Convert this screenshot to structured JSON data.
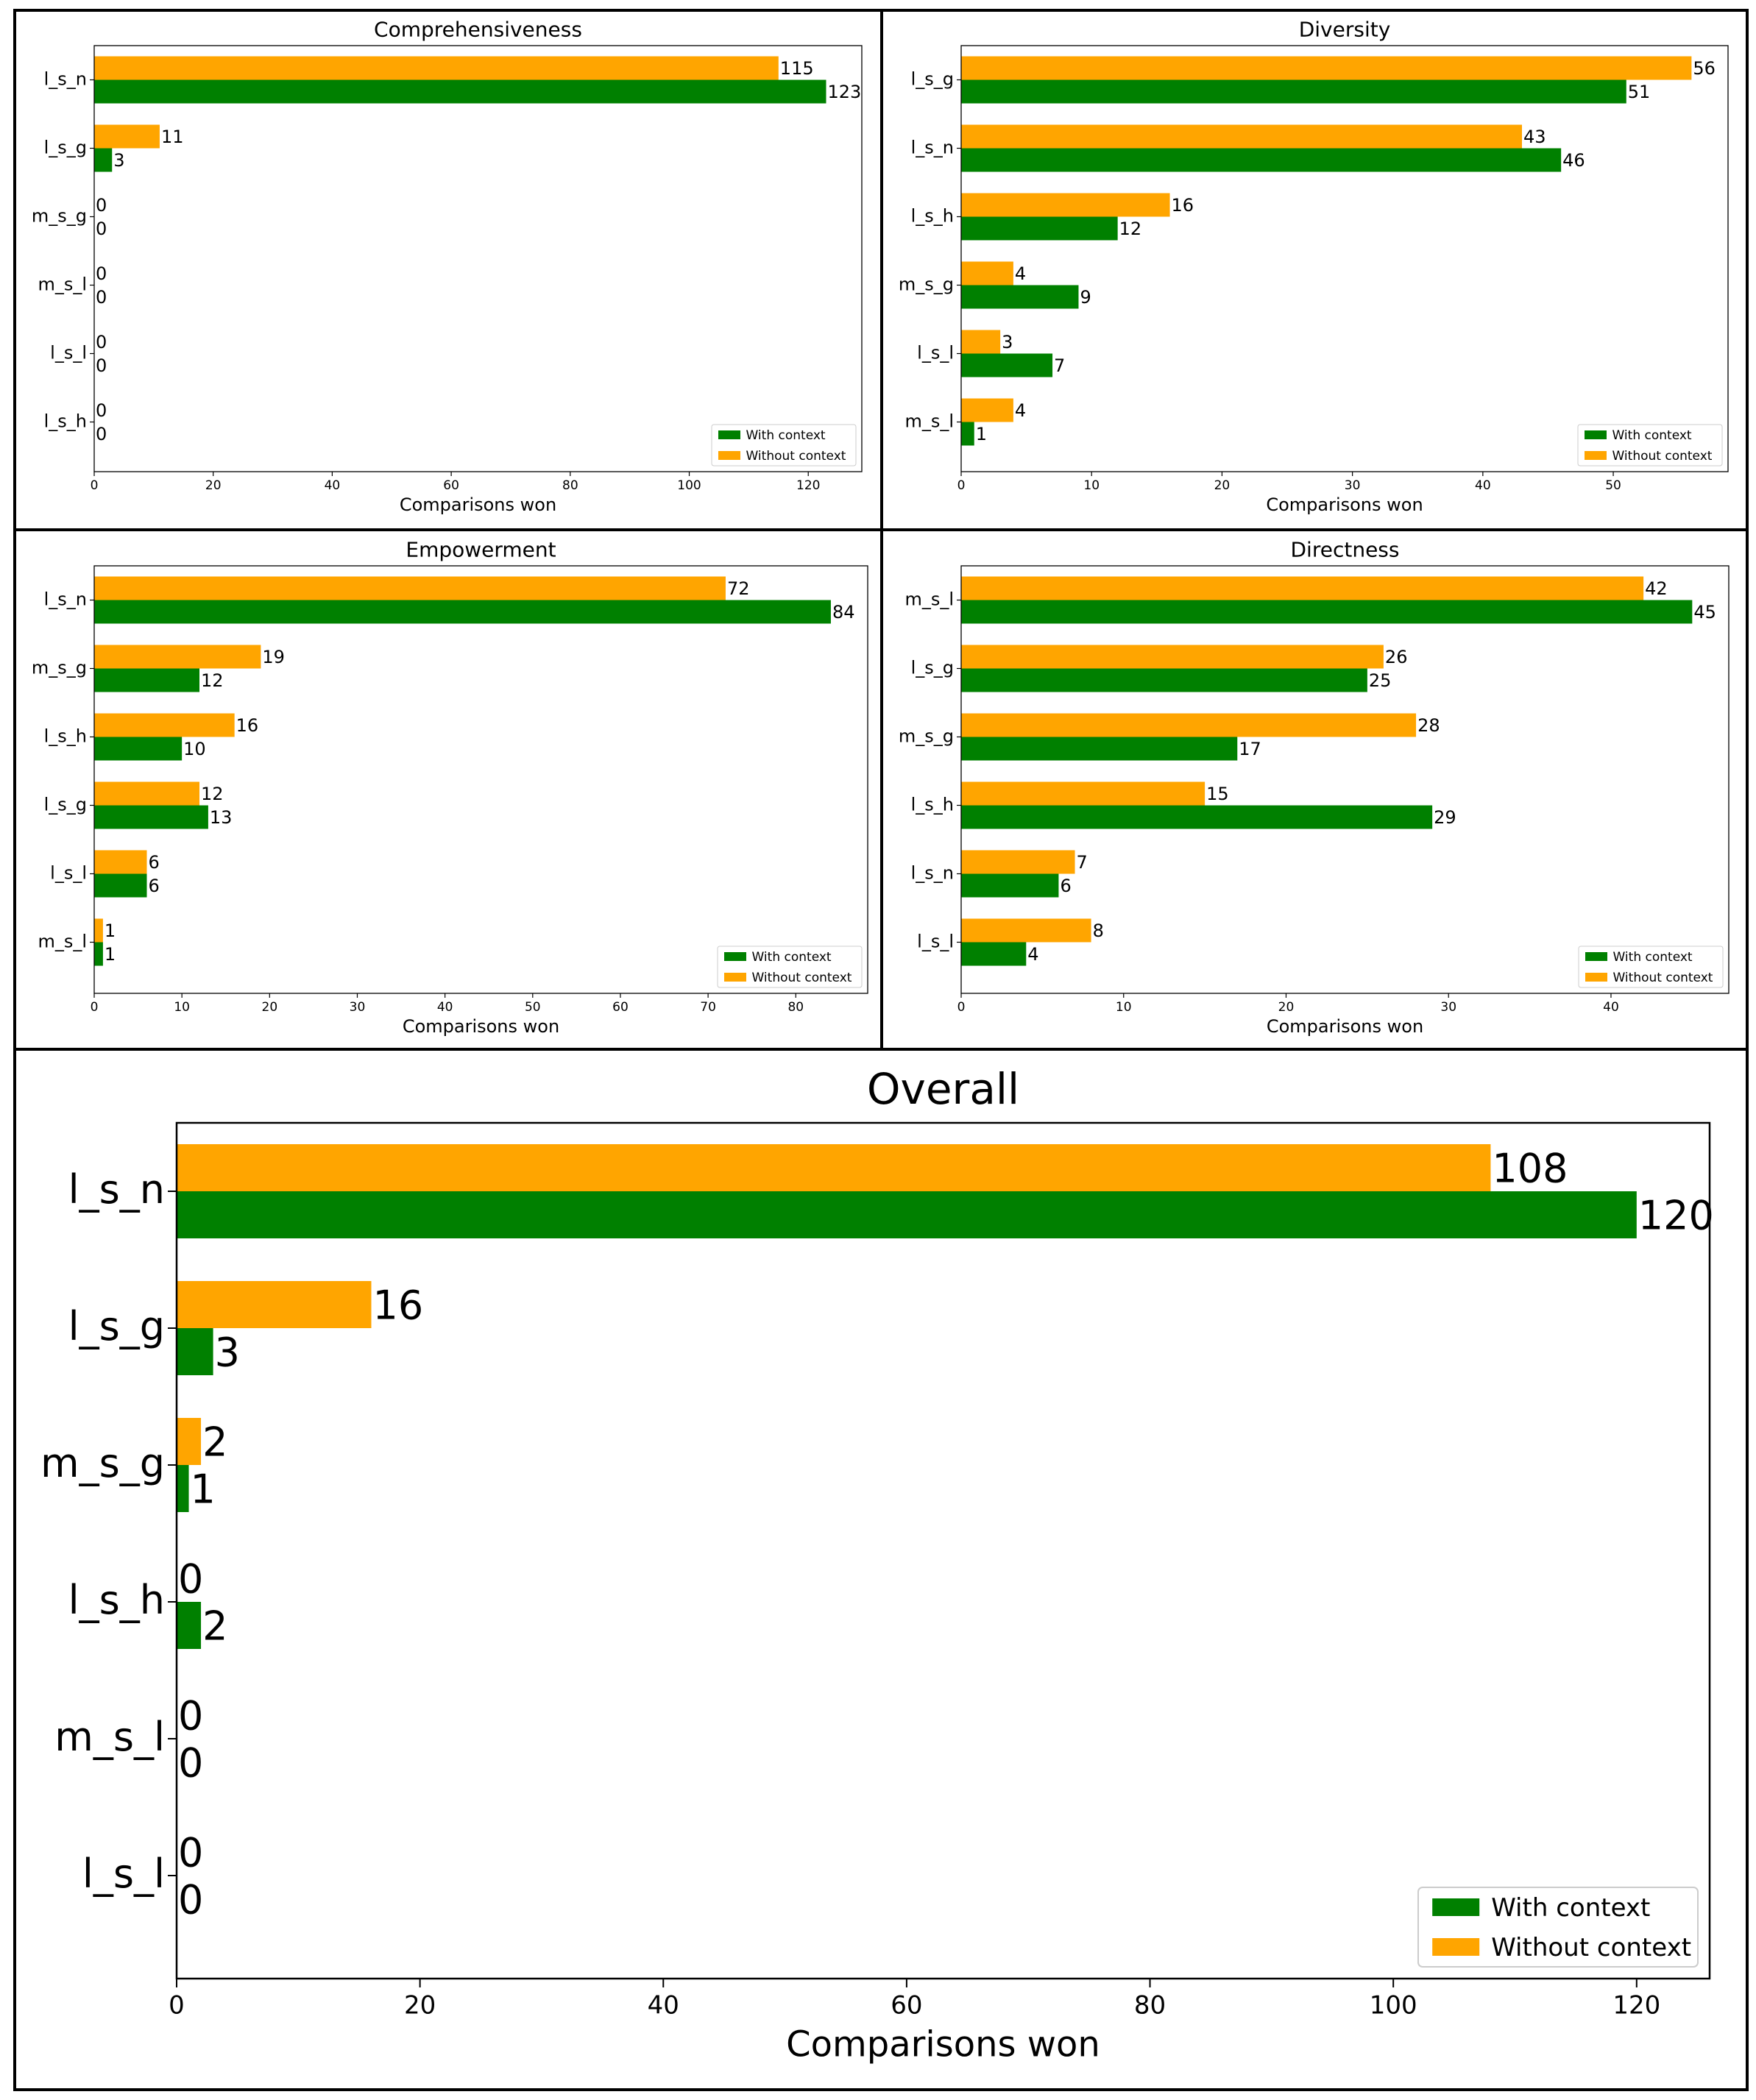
{
  "colors": {
    "with_context": "#008000",
    "without_context": "#FFA500",
    "axis": "#000000",
    "background": "#FFFFFF"
  },
  "chart_data": [
    {
      "type": "bar",
      "orientation": "horizontal",
      "title": "Comprehensiveness",
      "xlabel": "Comparisons won",
      "ylabel": "",
      "categories": [
        "l_s_n",
        "l_s_g",
        "m_s_g",
        "m_s_l",
        "l_s_l",
        "l_s_h"
      ],
      "series": [
        {
          "name": "Without context",
          "values": [
            115,
            11,
            0,
            0,
            0,
            0
          ]
        },
        {
          "name": "With context",
          "values": [
            123,
            3,
            0,
            0,
            0,
            0
          ]
        }
      ],
      "xlim": [
        0,
        129
      ],
      "xticks": [
        0,
        20,
        40,
        60,
        80,
        100,
        120
      ],
      "legend": {
        "position": "lower-right",
        "entries": [
          "With context",
          "Without context"
        ]
      }
    },
    {
      "type": "bar",
      "orientation": "horizontal",
      "title": "Diversity",
      "xlabel": "Comparisons won",
      "ylabel": "",
      "categories": [
        "l_s_g",
        "l_s_n",
        "l_s_h",
        "m_s_g",
        "l_s_l",
        "m_s_l"
      ],
      "series": [
        {
          "name": "Without context",
          "values": [
            56,
            43,
            16,
            4,
            3,
            4
          ]
        },
        {
          "name": "With context",
          "values": [
            51,
            46,
            12,
            9,
            7,
            1
          ]
        }
      ],
      "xlim": [
        0,
        58.8
      ],
      "xticks": [
        0,
        10,
        20,
        30,
        40,
        50
      ],
      "legend": {
        "position": "lower-right",
        "entries": [
          "With context",
          "Without context"
        ]
      }
    },
    {
      "type": "bar",
      "orientation": "horizontal",
      "title": "Empowerment",
      "xlabel": "Comparisons won",
      "ylabel": "",
      "categories": [
        "l_s_n",
        "m_s_g",
        "l_s_h",
        "l_s_g",
        "l_s_l",
        "m_s_l"
      ],
      "series": [
        {
          "name": "Without context",
          "values": [
            72,
            19,
            16,
            12,
            6,
            1
          ]
        },
        {
          "name": "With context",
          "values": [
            84,
            12,
            10,
            13,
            6,
            1
          ]
        }
      ],
      "xlim": [
        0,
        88.2
      ],
      "xticks": [
        0,
        10,
        20,
        30,
        40,
        50,
        60,
        70,
        80
      ],
      "legend": {
        "position": "lower-right",
        "entries": [
          "With context",
          "Without context"
        ]
      }
    },
    {
      "type": "bar",
      "orientation": "horizontal",
      "title": "Directness",
      "xlabel": "Comparisons won",
      "ylabel": "",
      "categories": [
        "m_s_l",
        "l_s_g",
        "m_s_g",
        "l_s_h",
        "l_s_n",
        "l_s_l"
      ],
      "series": [
        {
          "name": "Without context",
          "values": [
            42,
            26,
            28,
            15,
            7,
            8
          ]
        },
        {
          "name": "With context",
          "values": [
            45,
            25,
            17,
            29,
            6,
            4
          ]
        }
      ],
      "xlim": [
        0,
        47.25
      ],
      "xticks": [
        0,
        10,
        20,
        30,
        40
      ],
      "legend": {
        "position": "lower-right",
        "entries": [
          "With context",
          "Without context"
        ]
      }
    },
    {
      "type": "bar",
      "orientation": "horizontal",
      "title": "Overall",
      "xlabel": "Comparisons won",
      "ylabel": "",
      "categories": [
        "l_s_n",
        "l_s_g",
        "m_s_g",
        "l_s_h",
        "m_s_l",
        "l_s_l"
      ],
      "series": [
        {
          "name": "Without context",
          "values": [
            108,
            16,
            2,
            0,
            0,
            0
          ]
        },
        {
          "name": "With context",
          "values": [
            120,
            3,
            1,
            2,
            0,
            0
          ]
        }
      ],
      "xlim": [
        0,
        126
      ],
      "xticks": [
        0,
        20,
        40,
        60,
        80,
        100,
        120
      ],
      "legend": {
        "position": "lower-right",
        "entries": [
          "With context",
          "Without context"
        ]
      }
    }
  ]
}
